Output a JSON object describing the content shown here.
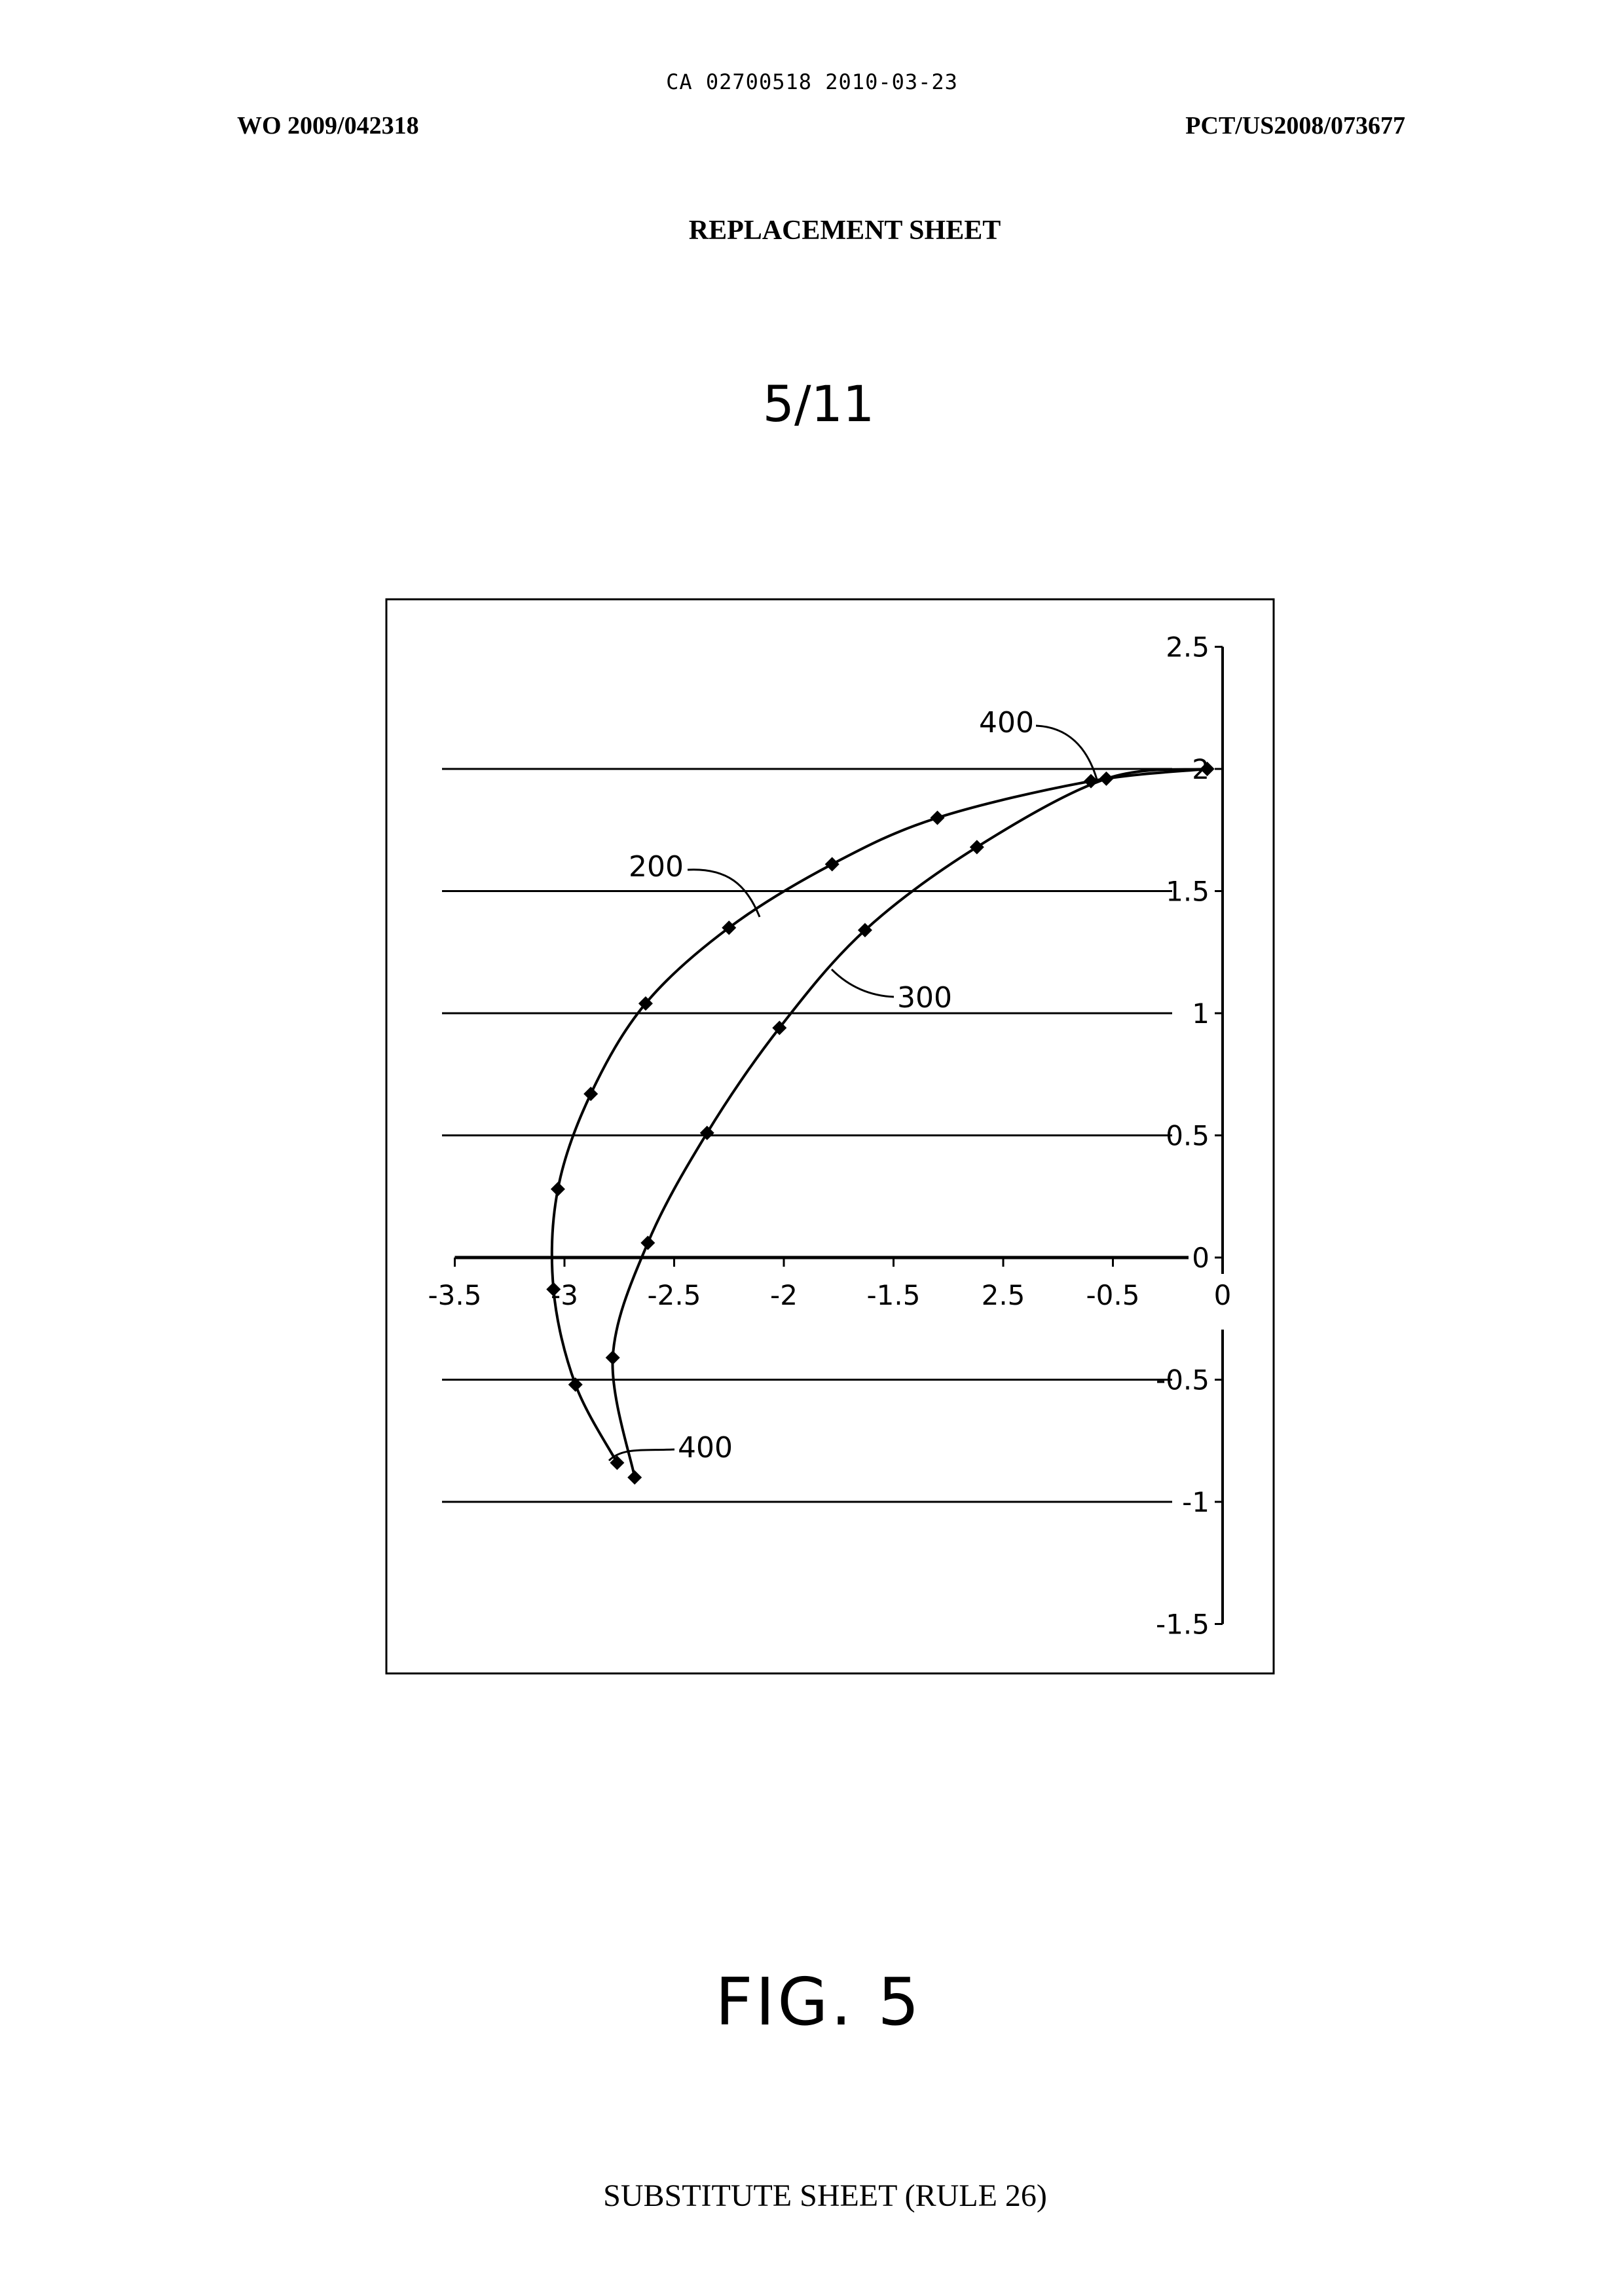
{
  "header": {
    "ca_number": "CA 02700518 2010-03-23",
    "wo_number": "WO 2009/042318",
    "pct_number": "PCT/US2008/073677",
    "replacement_sheet": "REPLACEMENT SHEET",
    "sheet_number": "5/11"
  },
  "figure": {
    "label": "FIG. 5"
  },
  "footer": {
    "text": "SUBSTITUTE SHEET (RULE 26)"
  },
  "chart_data": {
    "type": "line",
    "x_tick_labels": [
      "-3.5",
      "-3",
      "-2.5",
      "-2",
      "-1.5",
      "2.5",
      "-0.5",
      "0"
    ],
    "y_tick_labels": [
      "2.5",
      "2",
      "1.5",
      "1",
      "0.5",
      "0",
      "-0.5",
      "-1",
      "-1.5"
    ],
    "xlim": [
      -3.5,
      0
    ],
    "ylim": [
      -1.5,
      2.5
    ],
    "grid": true,
    "reference_labels": [
      "400",
      "200",
      "300",
      "400"
    ],
    "series": [
      {
        "name": "200",
        "points": [
          [
            -0.07,
            2.0
          ],
          [
            -0.6,
            1.95
          ],
          [
            -1.3,
            1.8
          ],
          [
            -1.78,
            1.61
          ],
          [
            -2.25,
            1.35
          ],
          [
            -2.63,
            1.04
          ],
          [
            -2.88,
            0.67
          ],
          [
            -3.03,
            0.28
          ],
          [
            -3.05,
            -0.13
          ],
          [
            -2.95,
            -0.52
          ],
          [
            -2.76,
            -0.84
          ]
        ]
      },
      {
        "name": "300",
        "points": [
          [
            -0.07,
            2.0
          ],
          [
            -0.53,
            1.96
          ],
          [
            -1.12,
            1.68
          ],
          [
            -1.63,
            1.34
          ],
          [
            -2.02,
            0.94
          ],
          [
            -2.35,
            0.51
          ],
          [
            -2.62,
            0.06
          ],
          [
            -2.78,
            -0.41
          ],
          [
            -2.68,
            -0.9
          ]
        ]
      }
    ]
  }
}
